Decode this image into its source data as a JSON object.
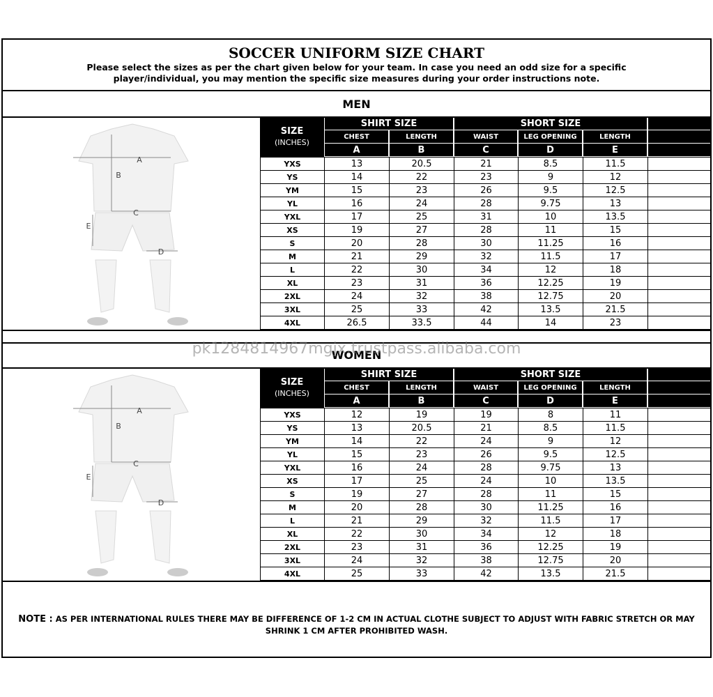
{
  "header": {
    "title": "SOCCER UNIFORM SIZE CHART",
    "subtitle": "Please select the sizes as per the chart given below for your team. In case you need an odd size for a specific player/individual, you may mention the specific size measures during your order instructions note."
  },
  "watermark": "pk1284814967mgjx.trustpass.alibaba.com",
  "sections": [
    {
      "title": "MEN",
      "size_header": "SIZE",
      "size_unit": "(INCHES)",
      "groups": [
        "SHIRT SIZE",
        "SHORT SIZE"
      ],
      "columns": [
        "CHEST",
        "LENGTH",
        "WAIST",
        "LEG OPENING",
        "LENGTH"
      ],
      "letters": [
        "A",
        "B",
        "C",
        "D",
        "E"
      ],
      "figure_labels": [
        "A",
        "B",
        "C",
        "E",
        "D"
      ],
      "rows": [
        [
          "YXS",
          13,
          20.5,
          21,
          8.5,
          11.5
        ],
        [
          "YS",
          14,
          22,
          23,
          9,
          12
        ],
        [
          "YM",
          15,
          23,
          26,
          9.5,
          12.5
        ],
        [
          "YL",
          16,
          24,
          28,
          9.75,
          13
        ],
        [
          "YXL",
          17,
          25,
          31,
          10,
          13.5
        ],
        [
          "XS",
          19,
          27,
          28,
          11,
          15
        ],
        [
          "S",
          20,
          28,
          30,
          11.25,
          16
        ],
        [
          "M",
          21,
          29,
          32,
          11.5,
          17
        ],
        [
          "L",
          22,
          30,
          34,
          12,
          18
        ],
        [
          "XL",
          23,
          31,
          36,
          12.25,
          19
        ],
        [
          "2XL",
          24,
          32,
          38,
          12.75,
          20
        ],
        [
          "3XL",
          25,
          33,
          42,
          13.5,
          21.5
        ],
        [
          "4XL",
          26.5,
          33.5,
          44,
          14,
          23
        ]
      ]
    },
    {
      "title": "WOMEN",
      "size_header": "SIZE",
      "size_unit": "(INCHES)",
      "groups": [
        "SHIRT SIZE",
        "SHORT SIZE"
      ],
      "columns": [
        "CHEST",
        "LENGTH",
        "WAIST",
        "LEG OPENING",
        "LENGTH"
      ],
      "letters": [
        "A",
        "B",
        "C",
        "D",
        "E"
      ],
      "figure_labels": [
        "A",
        "B",
        "C",
        "E",
        "D"
      ],
      "rows": [
        [
          "YXS",
          12,
          19,
          19,
          8,
          11
        ],
        [
          "YS",
          13,
          20.5,
          21,
          8.5,
          11.5
        ],
        [
          "YM",
          14,
          22,
          24,
          9,
          12
        ],
        [
          "YL",
          15,
          23,
          26,
          9.5,
          12.5
        ],
        [
          "YXL",
          16,
          24,
          28,
          9.75,
          13
        ],
        [
          "XS",
          17,
          25,
          24,
          10,
          13.5
        ],
        [
          "S",
          19,
          27,
          28,
          11,
          15
        ],
        [
          "M",
          20,
          28,
          30,
          11.25,
          16
        ],
        [
          "L",
          21,
          29,
          32,
          11.5,
          17
        ],
        [
          "XL",
          22,
          30,
          34,
          12,
          18
        ],
        [
          "2XL",
          23,
          31,
          36,
          12.25,
          19
        ],
        [
          "3XL",
          24,
          32,
          38,
          12.75,
          20
        ],
        [
          "4XL",
          25,
          33,
          42,
          13.5,
          21.5
        ]
      ]
    }
  ],
  "note": {
    "label": "NOTE :",
    "text": "AS PER INTERNATIONAL RULES THERE MAY BE DIFFERENCE OF 1-2 CM IN ACTUAL CLOTHE SUBJECT TO ADJUST WITH FABRIC STRETCH OR MAY SHRINK 1 CM AFTER PROHIBITED WASH."
  }
}
